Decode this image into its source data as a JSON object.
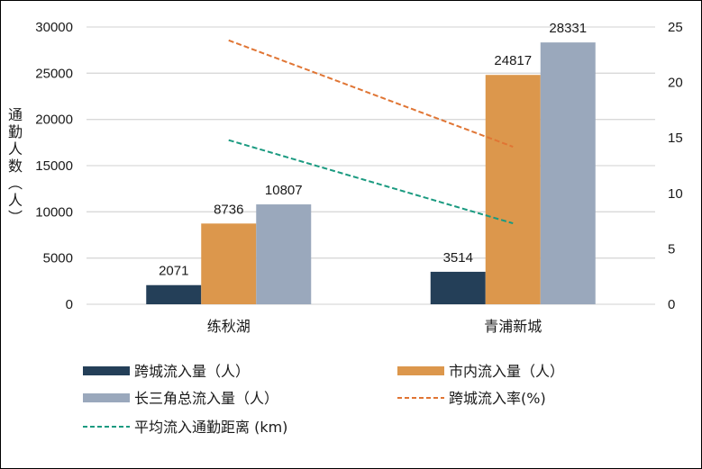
{
  "chart_data": {
    "type": "bar",
    "title": "",
    "categories": [
      "练秋湖",
      "青浦新城"
    ],
    "ylabel": "通勤人数（人）",
    "ylim": [
      0,
      30000
    ],
    "yticks": [
      "0",
      "5000",
      "10000",
      "15000",
      "20000",
      "25000",
      "30000"
    ],
    "y2lim": [
      0,
      25
    ],
    "y2ticks": [
      "0",
      "5",
      "10",
      "15",
      "20",
      "25"
    ],
    "grid": true,
    "legend_position": "bottom",
    "series": [
      {
        "name": "跨城流入量（人）",
        "type": "bar",
        "axis": "left",
        "color": "#243f58",
        "values": [
          2071,
          3514
        ],
        "labels": [
          "2071",
          "3514"
        ]
      },
      {
        "name": "市内流入量（人）",
        "type": "bar",
        "axis": "left",
        "color": "#dc974c",
        "values": [
          8736,
          24817
        ],
        "labels": [
          "8736",
          "24817"
        ]
      },
      {
        "name": "长三角总流入量（人）",
        "type": "bar",
        "axis": "left",
        "color": "#9aa8bc",
        "values": [
          10807,
          28331
        ],
        "labels": [
          "10807",
          "28331"
        ]
      },
      {
        "name": "跨城流入率(%)",
        "type": "line",
        "axis": "right",
        "style": "dashed",
        "color": "#e07534",
        "values": [
          23.8,
          14.2
        ]
      },
      {
        "name": "平均流入通勤距离 (km)",
        "type": "line",
        "axis": "right",
        "style": "dashed",
        "color": "#1a9a80",
        "values": [
          14.8,
          7.3
        ]
      }
    ]
  }
}
